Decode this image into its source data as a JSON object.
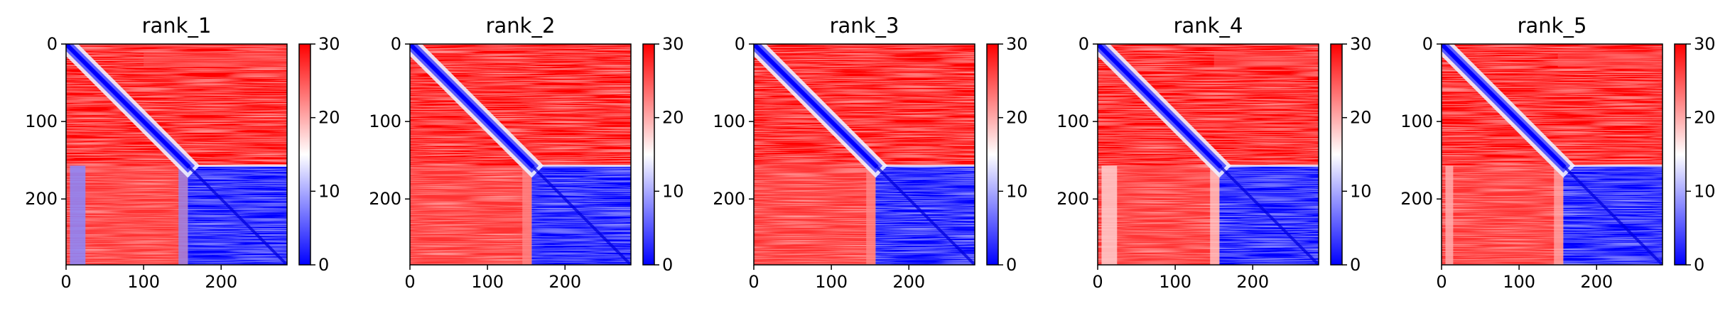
{
  "chart_data": [
    {
      "type": "heatmap",
      "title": "rank_1",
      "xlim": [
        0,
        285
      ],
      "ylim": [
        285,
        0
      ],
      "xticks": [
        0,
        100,
        200
      ],
      "yticks": [
        0,
        100,
        200
      ],
      "colorbar": {
        "min": 0,
        "max": 30,
        "ticks": [
          0,
          10,
          20,
          30
        ],
        "colormap": "bwr"
      },
      "block_boundary": 157,
      "low_strip_upper": [
        100,
        285
      ],
      "stripe_lower": [
        0,
        25
      ],
      "stripe_value": 8
    },
    {
      "type": "heatmap",
      "title": "rank_2",
      "xlim": [
        0,
        285
      ],
      "ylim": [
        285,
        0
      ],
      "xticks": [
        0,
        100,
        200
      ],
      "yticks": [
        0,
        100,
        200
      ],
      "colorbar": {
        "min": 0,
        "max": 30,
        "ticks": [
          0,
          10,
          20,
          30
        ],
        "colormap": "bwr"
      },
      "block_boundary": 157,
      "low_strip_upper": [],
      "stripe_lower": [],
      "stripe_value": 22
    },
    {
      "type": "heatmap",
      "title": "rank_3",
      "xlim": [
        0,
        285
      ],
      "ylim": [
        285,
        0
      ],
      "xticks": [
        0,
        100,
        200
      ],
      "yticks": [
        0,
        100,
        200
      ],
      "colorbar": {
        "min": 0,
        "max": 30,
        "ticks": [
          0,
          10,
          20,
          30
        ],
        "colormap": "bwr"
      },
      "block_boundary": 157,
      "low_strip_upper": [],
      "stripe_lower": [],
      "stripe_value": 22
    },
    {
      "type": "heatmap",
      "title": "rank_4",
      "xlim": [
        0,
        285
      ],
      "ylim": [
        285,
        0
      ],
      "xticks": [
        0,
        100,
        200
      ],
      "yticks": [
        0,
        100,
        200
      ],
      "colorbar": {
        "min": 0,
        "max": 30,
        "ticks": [
          0,
          10,
          20,
          30
        ],
        "colormap": "bwr"
      },
      "block_boundary": 157,
      "low_strip_upper": [
        150,
        285
      ],
      "stripe_lower": [
        0,
        25
      ],
      "stripe_value": 18
    },
    {
      "type": "heatmap",
      "title": "rank_5",
      "xlim": [
        0,
        285
      ],
      "ylim": [
        285,
        0
      ],
      "xticks": [
        0,
        100,
        200
      ],
      "yticks": [
        0,
        100,
        200
      ],
      "colorbar": {
        "min": 0,
        "max": 30,
        "ticks": [
          0,
          10,
          20,
          30
        ],
        "colormap": "bwr"
      },
      "block_boundary": 157,
      "low_strip_upper": [
        150,
        285
      ],
      "stripe_lower": [
        0,
        15
      ],
      "stripe_value": 20
    }
  ]
}
